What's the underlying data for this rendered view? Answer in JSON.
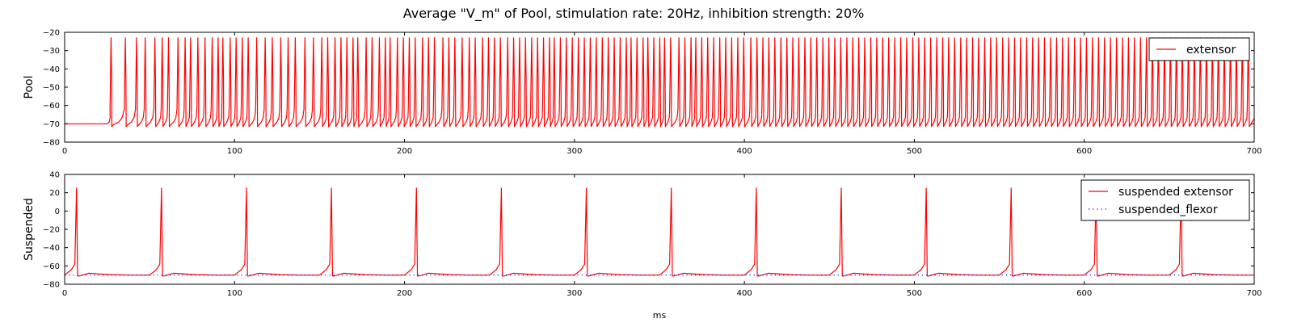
{
  "figure_title": "Average \"V_m\" of Pool, stimulation rate: 20Hz, inhibition strength: 20%",
  "colors": {
    "extensor": "#ff0000",
    "flexor": "#0000ff",
    "axes": "#000000",
    "background": "#ffffff"
  },
  "chart_data": [
    {
      "type": "line",
      "title": "",
      "xlabel": "",
      "ylabel": "Pool",
      "xlim": [
        0,
        700
      ],
      "ylim": [
        -80,
        -20
      ],
      "xticks": [
        0,
        100,
        200,
        300,
        400,
        500,
        600,
        700
      ],
      "yticks": [
        -80,
        -70,
        -60,
        -50,
        -40,
        -30,
        -20
      ],
      "xtick_labels": [
        "0",
        "100",
        "200",
        "300",
        "400",
        "500",
        "600",
        "700"
      ],
      "ytick_labels": [
        "−80",
        "−70",
        "−60",
        "−50",
        "−40",
        "−30",
        "−20"
      ],
      "grid": false,
      "legend_position": "top-right",
      "legend": [
        "extensor"
      ],
      "series": [
        {
          "name": "extensor",
          "style": "solid",
          "color": "#ff0000",
          "baseline_mV": -70,
          "stimulation_onset_ms": 25,
          "spike_times_ms": [
            27.3,
            35.7,
            42.3,
            47.4,
            53.1,
            57.4,
            61.1,
            66.7,
            70.9,
            74.1,
            78.4,
            82.6,
            86.8,
            90.3,
            93.1,
            97.4,
            100.9,
            104.5,
            108.0,
            113.0,
            118.0,
            122.2,
            127.2,
            131.5,
            135.7,
            141.4,
            146.4,
            151.3,
            154.8,
            159.1,
            162.6,
            166.1,
            169.7,
            172.5,
            177.4,
            180.9,
            185.2,
            188.7,
            191.5,
            195.8,
            199.3,
            202.8,
            206.3,
            210.6,
            214.1,
            217.6,
            222.6,
            226.1,
            229.6,
            233.9,
            238.1,
            241.6,
            245.9,
            249.4,
            252.9,
            256.4,
            260.7,
            264.2,
            267.7,
            271.2,
            274.8,
            278.3,
            281.8,
            285.3,
            288.1,
            291.7,
            295.2,
            298.7,
            302.3,
            305.8,
            309.3,
            312.8,
            316.4,
            319.9,
            323.4,
            326.9,
            330.5,
            333.3,
            336.8,
            340.4,
            343.2,
            346.7,
            350.2,
            353.0,
            356.6,
            361.5,
            365.0,
            368.6,
            371.4,
            374.9,
            378.4,
            381.9,
            385.5,
            389.0,
            392.5,
            396.1,
            399.6,
            403.8,
            407.4,
            410.9,
            414.4,
            417.9,
            421.5,
            425.0,
            428.5,
            432.0,
            435.6,
            439.1,
            442.6,
            446.2,
            449.7,
            453.2,
            456.7,
            460.3,
            463.8,
            467.3,
            470.8,
            474.4,
            477.9,
            481.4,
            484.9,
            488.5,
            492.0,
            495.5,
            499.1,
            502.6,
            506.1,
            509.6,
            513.2,
            516.7,
            520.2,
            523.7,
            527.3,
            530.8,
            534.3,
            537.8,
            541.4,
            544.9,
            548.4,
            552.0,
            555.5,
            559.0,
            562.5,
            566.1,
            569.6,
            573.1,
            576.6,
            580.2,
            583.7,
            587.2,
            590.7,
            594.3,
            597.8,
            601.3,
            604.8,
            608.4,
            611.9,
            615.4,
            619.0,
            622.5,
            626.0,
            629.5,
            633.1,
            636.6,
            640.1,
            643.6,
            647.2,
            650.7,
            654.2,
            657.7,
            661.3,
            664.8,
            668.3,
            671.9,
            675.4,
            678.9,
            682.4,
            686.0,
            689.5,
            693.0,
            696.5
          ]
        }
      ]
    },
    {
      "type": "line",
      "title": "",
      "xlabel": "ms",
      "ylabel": "Suspended",
      "xlim": [
        0,
        700
      ],
      "ylim": [
        -80,
        40
      ],
      "xticks": [
        0,
        100,
        200,
        300,
        400,
        500,
        600,
        700
      ],
      "yticks": [
        -80,
        -60,
        -40,
        -20,
        0,
        20,
        40
      ],
      "xtick_labels": [
        "0",
        "100",
        "200",
        "300",
        "400",
        "500",
        "600",
        "700"
      ],
      "ytick_labels": [
        "−80",
        "−60",
        "−40",
        "−20",
        "0",
        "20",
        "40"
      ],
      "grid": false,
      "legend_position": "top-right",
      "legend": [
        "suspended extensor",
        "suspended_flexor"
      ],
      "series": [
        {
          "name": "suspended extensor",
          "style": "solid",
          "color": "#ff0000",
          "baseline_mV": -70,
          "peak_mV": 25,
          "spike_times_ms": [
            7,
            57,
            107,
            157,
            207,
            257,
            307,
            357,
            407,
            457,
            507,
            557,
            607,
            657
          ]
        },
        {
          "name": "suspended_flexor",
          "style": "dotted",
          "color": "#0000ff",
          "x": [
            0,
            700
          ],
          "y": [
            -70,
            -70
          ]
        }
      ]
    }
  ]
}
